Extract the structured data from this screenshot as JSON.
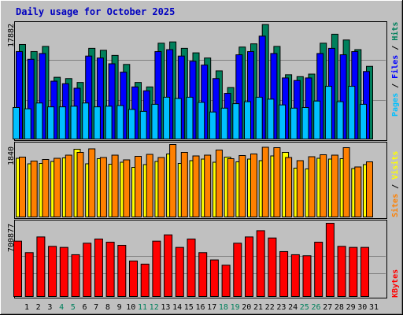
{
  "title": "Daily usage for October 2025",
  "colors": {
    "background": "#C0C0C0",
    "title": "#0000C0",
    "hits": "#00805C",
    "files": "#0000FF",
    "pages": "#00C0FF",
    "visits": "#FFFF00",
    "sites": "#FF8000",
    "kbytes": "#FF0000",
    "weekend_label": "#00805C"
  },
  "right_labels": {
    "top": {
      "pages": "Pages",
      "files": "Files",
      "hits": "Hits",
      "sep": " / "
    },
    "middle": {
      "sites": "Sites",
      "visits": "Visits",
      "sep": " / "
    },
    "bottom": {
      "kbytes": "KBytes"
    }
  },
  "chart_data": [
    {
      "type": "bar",
      "panel": "hits-files-pages",
      "y_max_label": "17882",
      "ylim": [
        0,
        17882
      ],
      "categories": [
        "1",
        "2",
        "3",
        "4",
        "5",
        "6",
        "7",
        "8",
        "9",
        "10",
        "11",
        "12",
        "13",
        "14",
        "15",
        "16",
        "17",
        "18",
        "19",
        "20",
        "21",
        "22",
        "23",
        "24",
        "25",
        "26",
        "27",
        "28",
        "29",
        "30",
        "31"
      ],
      "weekend_days": [
        "4",
        "5",
        "11",
        "12",
        "18",
        "19",
        "25",
        "26"
      ],
      "series": [
        {
          "name": "Hits",
          "values": [
            14700,
            13600,
            14400,
            9600,
            9400,
            8800,
            14100,
            13800,
            13000,
            11600,
            8800,
            8100,
            14900,
            15100,
            14100,
            13400,
            12600,
            10600,
            8000,
            14300,
            14800,
            17800,
            14400,
            10000,
            9700,
            10100,
            14900,
            16300,
            15400,
            13900,
            11300
          ]
        },
        {
          "name": "Files",
          "values": [
            13600,
            12400,
            13300,
            9000,
            8600,
            7900,
            12900,
            12600,
            11700,
            10400,
            8100,
            7500,
            13600,
            13900,
            12900,
            12100,
            11500,
            9400,
            7100,
            13100,
            13600,
            16000,
            13300,
            9500,
            9100,
            9500,
            13300,
            14100,
            13100,
            13600,
            10500
          ]
        },
        {
          "name": "Pages",
          "values": [
            4900,
            4700,
            5600,
            5000,
            5000,
            5100,
            5600,
            5000,
            5100,
            5200,
            4600,
            4300,
            5400,
            6500,
            6300,
            6500,
            5700,
            4200,
            4800,
            5500,
            5800,
            6500,
            6200,
            5300,
            4800,
            4900,
            5900,
            8200,
            5800,
            8200,
            5400
          ]
        }
      ]
    },
    {
      "type": "bar",
      "panel": "visits-sites",
      "y_max_label": "1840",
      "ylim": [
        0,
        1840
      ],
      "categories": [
        "1",
        "2",
        "3",
        "4",
        "5",
        "6",
        "7",
        "8",
        "9",
        "10",
        "11",
        "12",
        "13",
        "14",
        "15",
        "16",
        "17",
        "18",
        "19",
        "20",
        "21",
        "22",
        "23",
        "24",
        "25",
        "26",
        "27",
        "28",
        "29",
        "30",
        "31"
      ],
      "series": [
        {
          "name": "Visits",
          "values": [
            1490,
            1350,
            1360,
            1410,
            1500,
            1720,
            1350,
            1480,
            1340,
            1390,
            1260,
            1330,
            1410,
            1600,
            1360,
            1430,
            1470,
            1390,
            1520,
            1400,
            1470,
            1430,
            1550,
            1640,
            1240,
            1220,
            1490,
            1470,
            1480,
            1230,
            1330
          ]
        },
        {
          "name": "Sites",
          "values": [
            1520,
            1420,
            1460,
            1490,
            1570,
            1640,
            1730,
            1510,
            1570,
            1450,
            1540,
            1590,
            1510,
            1840,
            1640,
            1550,
            1570,
            1700,
            1480,
            1560,
            1600,
            1770,
            1760,
            1510,
            1430,
            1530,
            1580,
            1570,
            1760,
            1270,
            1400
          ]
        }
      ]
    },
    {
      "type": "bar",
      "panel": "kbytes",
      "y_max_label": "700877",
      "ylim": [
        0,
        700877
      ],
      "categories": [
        "1",
        "2",
        "3",
        "4",
        "5",
        "6",
        "7",
        "8",
        "9",
        "10",
        "11",
        "12",
        "13",
        "14",
        "15",
        "16",
        "17",
        "18",
        "19",
        "20",
        "21",
        "22",
        "23",
        "24",
        "25",
        "26",
        "27",
        "28",
        "29",
        "30",
        "31"
      ],
      "series": [
        {
          "name": "KBytes",
          "values": [
            530000,
            420000,
            570000,
            480000,
            470000,
            400000,
            510000,
            550000,
            520000,
            490000,
            340000,
            310000,
            530000,
            590000,
            470000,
            550000,
            420000,
            350000,
            300000,
            510000,
            570000,
            630000,
            560000,
            430000,
            400000,
            390000,
            520000,
            700877,
            480000,
            470000,
            470000
          ]
        }
      ]
    }
  ]
}
